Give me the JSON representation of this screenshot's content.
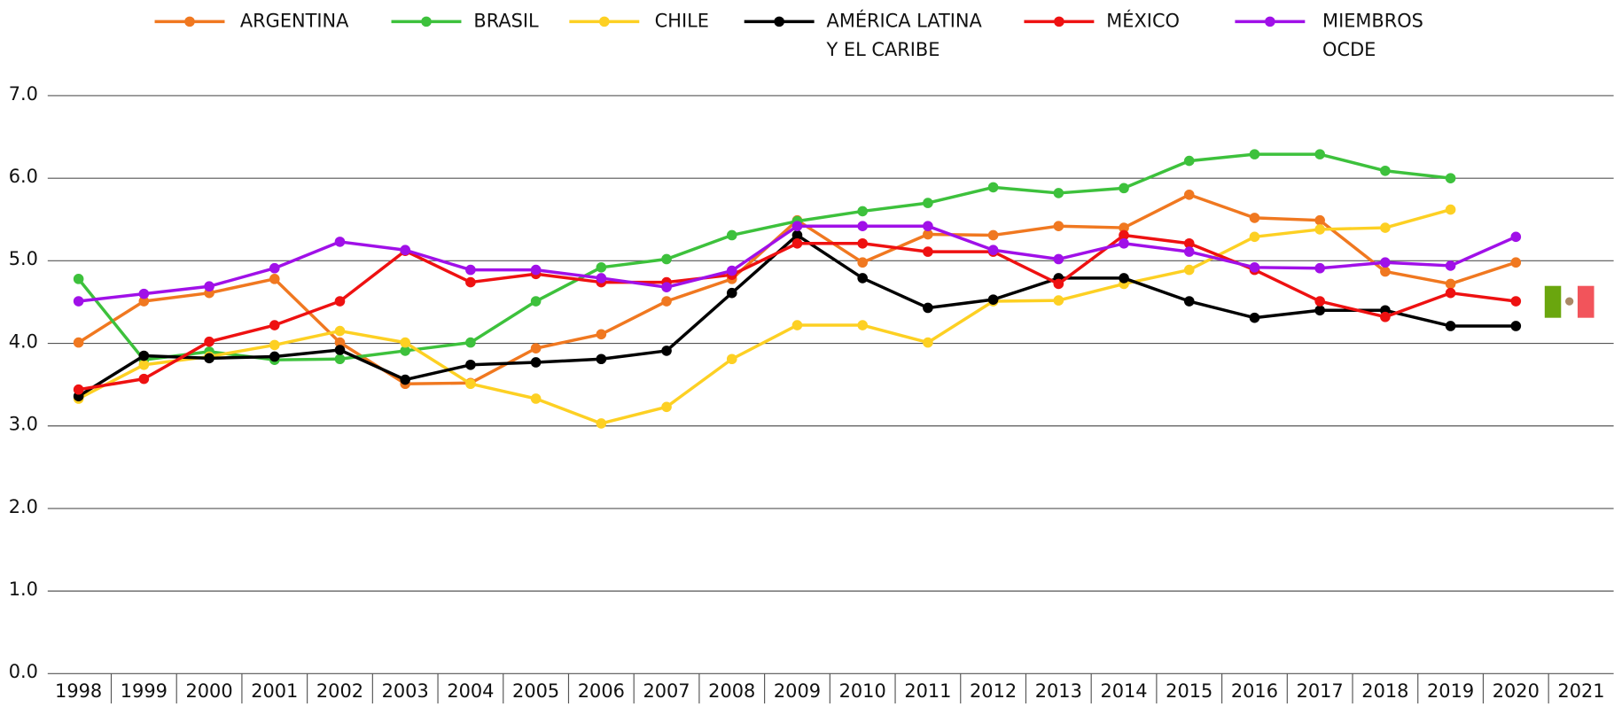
{
  "chart_data": {
    "type": "line",
    "categories": [
      "1998",
      "1999",
      "2000",
      "2001",
      "2002",
      "2003",
      "2004",
      "2005",
      "2006",
      "2007",
      "2008",
      "2009",
      "2010",
      "2011",
      "2012",
      "2013",
      "2014",
      "2015",
      "2016",
      "2017",
      "2018",
      "2019",
      "2020",
      "2021"
    ],
    "series": [
      {
        "name": "ARGENTINA",
        "color": "#f07820",
        "values": [
          4.01,
          4.51,
          4.61,
          4.78,
          4.01,
          3.51,
          3.52,
          3.94,
          4.11,
          4.51,
          4.78,
          5.49,
          4.98,
          5.32,
          5.31,
          5.42,
          5.4,
          5.8,
          5.52,
          5.49,
          4.87,
          4.72,
          4.98,
          null
        ]
      },
      {
        "name": "BRASIL",
        "color": "#3dc13c",
        "values": [
          4.78,
          3.8,
          3.9,
          3.8,
          3.81,
          3.91,
          4.01,
          4.51,
          4.92,
          5.02,
          5.31,
          5.48,
          5.6,
          5.7,
          5.89,
          5.82,
          5.88,
          6.21,
          6.29,
          6.29,
          6.09,
          6.0,
          null,
          null
        ]
      },
      {
        "name": "CHILE",
        "color": "#fdd023",
        "values": [
          3.33,
          3.74,
          3.84,
          3.98,
          4.15,
          4.01,
          3.51,
          3.33,
          3.03,
          3.23,
          3.81,
          4.22,
          4.22,
          4.01,
          4.51,
          4.52,
          4.72,
          4.89,
          5.29,
          5.38,
          5.4,
          5.62,
          null,
          null
        ]
      },
      {
        "name": "AMÉRICA LATINA\nY EL CARIBE",
        "color": "#000000",
        "values": [
          3.36,
          3.85,
          3.82,
          3.84,
          3.92,
          3.56,
          3.74,
          3.77,
          3.81,
          3.91,
          4.61,
          5.31,
          4.79,
          4.43,
          4.53,
          4.79,
          4.79,
          4.51,
          4.31,
          4.4,
          4.4,
          4.21,
          4.21,
          null
        ]
      },
      {
        "name": "MÉXICO",
        "color": "#ee1111",
        "values": [
          3.44,
          3.57,
          4.02,
          4.22,
          4.51,
          5.12,
          4.74,
          4.84,
          4.74,
          4.74,
          4.83,
          5.21,
          5.21,
          5.11,
          5.11,
          4.72,
          5.31,
          5.21,
          4.89,
          4.51,
          4.32,
          4.61,
          4.51,
          null
        ]
      },
      {
        "name": "MIEMBROS\nOCDE",
        "color": "#a010e8",
        "values": [
          4.51,
          4.6,
          4.69,
          4.91,
          5.23,
          5.13,
          4.89,
          4.89,
          4.79,
          4.68,
          4.88,
          5.42,
          5.42,
          5.42,
          5.13,
          5.02,
          5.21,
          5.11,
          4.92,
          4.91,
          4.98,
          4.94,
          5.29,
          null
        ]
      }
    ],
    "ylim": [
      0,
      7
    ],
    "yticks": [
      {
        "value": 0,
        "label": "0.0"
      },
      {
        "value": 1,
        "label": "1.0"
      },
      {
        "value": 2,
        "label": "2.0"
      },
      {
        "value": 3,
        "label": "3.0"
      },
      {
        "value": 4,
        "label": "4.0"
      },
      {
        "value": 5,
        "label": "5.0"
      },
      {
        "value": 6,
        "label": "6.0"
      },
      {
        "value": 7,
        "label": "7.0"
      }
    ],
    "grid": true
  }
}
